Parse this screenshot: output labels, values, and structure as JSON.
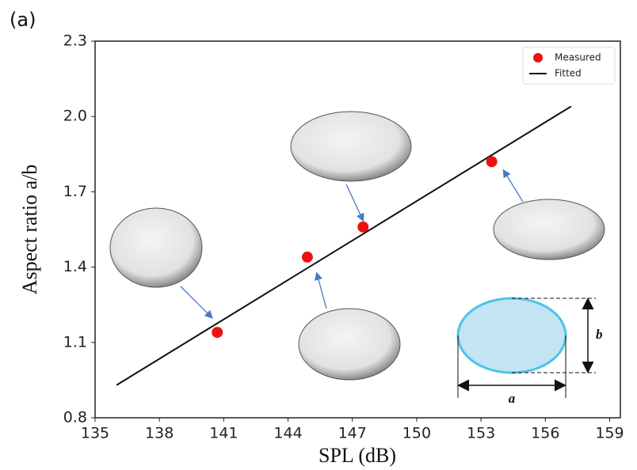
{
  "chart_data": {
    "type": "scatter",
    "panel_label": "(a)",
    "xlabel": "SPL (dB)",
    "ylabel": "Aspect ratio a/b",
    "xlim": [
      135,
      159.5
    ],
    "xticks": [
      135,
      138,
      141,
      144,
      147,
      150,
      153,
      156,
      159
    ],
    "ylim": [
      0.8,
      2.3
    ],
    "yticks": [
      0.8,
      1.1,
      1.4,
      1.7,
      {
        "value": 2,
        "label": "2.0"
      },
      2.3
    ],
    "legend": "upper right",
    "annotations": [
      "a",
      "b"
    ],
    "series": [
      {
        "name": "Measured",
        "type": "scatter",
        "color": "#ee1111",
        "x": [
          140.7,
          144.9,
          147.5,
          153.5
        ],
        "values": [
          1.14,
          1.44,
          1.56,
          1.82
        ]
      },
      {
        "name": "Fitted",
        "type": "line",
        "color": "#111111",
        "x": [
          136,
          157.2
        ],
        "values": [
          0.93,
          2.04
        ]
      }
    ]
  }
}
